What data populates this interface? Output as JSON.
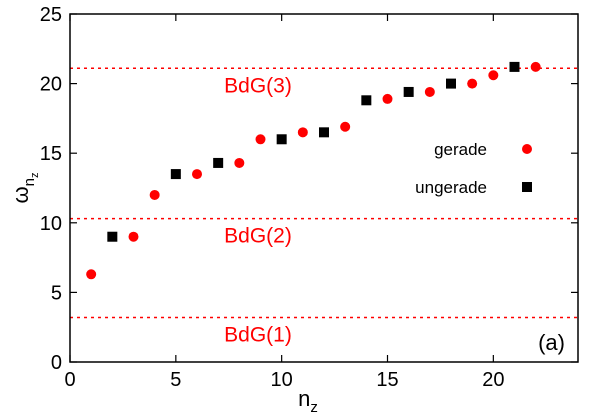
{
  "chart_data": {
    "type": "scatter",
    "xlabel": "n",
    "xlabel_sub": "z",
    "ylabel": "ω",
    "ylabel_sub": "n",
    "ylabel_subsub": "z",
    "xlim": [
      0,
      24
    ],
    "ylim": [
      0,
      25
    ],
    "x_ticks": [
      0,
      5,
      10,
      15,
      20
    ],
    "y_ticks": [
      0,
      5,
      10,
      15,
      20,
      25
    ],
    "panel_label": "(a)",
    "legend_position": "right",
    "series": [
      {
        "name": "gerade",
        "marker": "circle",
        "color": "#ff0000",
        "x": [
          1,
          3,
          4,
          6,
          8,
          9,
          11,
          13,
          15,
          17,
          19,
          20,
          22
        ],
        "y": [
          6.3,
          9.0,
          12.0,
          13.5,
          14.3,
          16.0,
          16.5,
          16.9,
          18.9,
          19.4,
          20.0,
          20.6,
          21.2
        ]
      },
      {
        "name": "ungerade",
        "marker": "square",
        "color": "#000000",
        "x": [
          2,
          5,
          7,
          10,
          12,
          14,
          16,
          18,
          21
        ],
        "y": [
          9.0,
          13.5,
          14.3,
          16.0,
          16.5,
          18.8,
          19.4,
          20.0,
          21.2
        ]
      }
    ],
    "reference_lines": [
      {
        "label": "BdG(1)",
        "y": 3.2,
        "color": "#ff0000"
      },
      {
        "label": "BdG(2)",
        "y": 10.3,
        "color": "#ff0000"
      },
      {
        "label": "BdG(3)",
        "y": 21.1,
        "color": "#ff0000"
      }
    ]
  }
}
